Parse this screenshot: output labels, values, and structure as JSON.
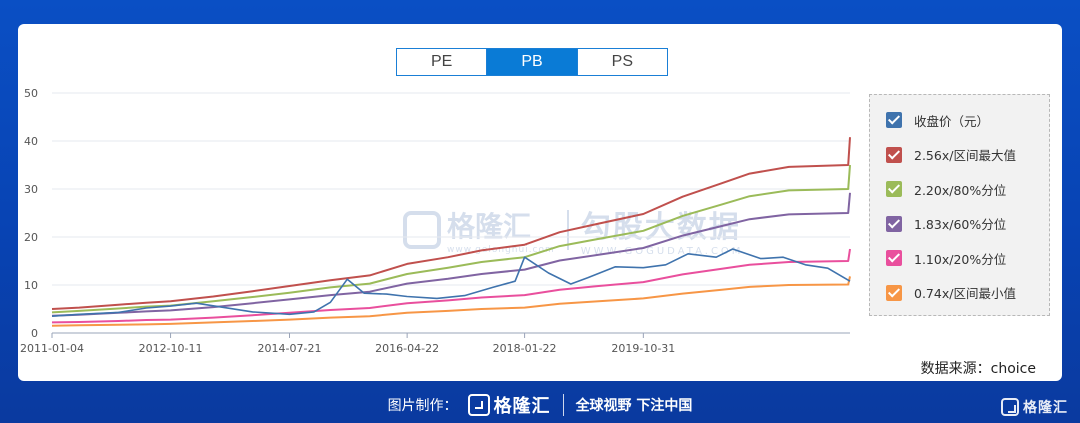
{
  "tabs": [
    {
      "label": "PE",
      "active": false
    },
    {
      "label": "PB",
      "active": true
    },
    {
      "label": "PS",
      "active": false
    }
  ],
  "watermark": {
    "brand1": "格隆汇",
    "brand1_sub": "www.gelonghui.com",
    "brand2": "勾股大数据",
    "brand2_sub": "WWW.GOGUDATA.COM"
  },
  "source": "数据来源：choice",
  "footer": {
    "label": "图片制作：",
    "logo_text": "格隆汇",
    "slogan": "全球视野 下注中国",
    "corner_logo": "格隆汇"
  },
  "chart_data": {
    "type": "line",
    "ylim": [
      0,
      50
    ],
    "yticks": [
      0,
      10,
      20,
      30,
      40,
      50
    ],
    "xlim": [
      "2011-01-04",
      "2022-11-30"
    ],
    "xticks": [
      "2011-01-04",
      "2012-10-11",
      "2014-07-21",
      "2016-04-22",
      "2018-01-22",
      "2019-10-31"
    ],
    "grid": true,
    "legend_position": "right",
    "series": [
      {
        "name": "收盘价（元）",
        "color": "#3f73ad",
        "points": [
          [
            "2011-01-04",
            3.5
          ],
          [
            "2011-06-01",
            3.9
          ],
          [
            "2012-01-01",
            4.3
          ],
          [
            "2012-06-01",
            5.2
          ],
          [
            "2012-10-11",
            5.6
          ],
          [
            "2013-03-01",
            6.2
          ],
          [
            "2013-08-01",
            5.3
          ],
          [
            "2014-01-01",
            4.4
          ],
          [
            "2014-07-21",
            3.9
          ],
          [
            "2014-12-01",
            4.4
          ],
          [
            "2015-03-01",
            6.4
          ],
          [
            "2015-06-01",
            11.2
          ],
          [
            "2015-09-01",
            8.3
          ],
          [
            "2016-01-01",
            8.1
          ],
          [
            "2016-04-22",
            7.6
          ],
          [
            "2016-10-01",
            7.2
          ],
          [
            "2017-03-01",
            7.8
          ],
          [
            "2017-08-01",
            9.5
          ],
          [
            "2017-12-01",
            10.8
          ],
          [
            "2018-01-22",
            15.8
          ],
          [
            "2018-06-01",
            12.5
          ],
          [
            "2018-10-01",
            10.2
          ],
          [
            "2019-01-01",
            11.5
          ],
          [
            "2019-06-01",
            13.8
          ],
          [
            "2019-10-31",
            13.6
          ],
          [
            "2020-03-01",
            14.2
          ],
          [
            "2020-07-01",
            16.5
          ],
          [
            "2020-12-01",
            15.8
          ],
          [
            "2021-03-01",
            17.5
          ],
          [
            "2021-08-01",
            15.5
          ],
          [
            "2021-12-01",
            15.8
          ],
          [
            "2022-04-01",
            14.2
          ],
          [
            "2022-08-01",
            13.5
          ],
          [
            "2022-11-30",
            10.8
          ]
        ]
      },
      {
        "name": "2.56x/区间最大值",
        "color": "#c0504d",
        "points": [
          [
            "2011-01-04",
            5.0
          ],
          [
            "2011-06-01",
            5.3
          ],
          [
            "2012-01-01",
            5.9
          ],
          [
            "2012-06-01",
            6.3
          ],
          [
            "2012-10-11",
            6.6
          ],
          [
            "2013-06-01",
            7.6
          ],
          [
            "2014-01-01",
            8.7
          ],
          [
            "2014-07-21",
            9.8
          ],
          [
            "2015-03-01",
            11.0
          ],
          [
            "2015-10-01",
            12.0
          ],
          [
            "2016-04-22",
            14.4
          ],
          [
            "2016-12-01",
            15.8
          ],
          [
            "2017-06-01",
            17.2
          ],
          [
            "2018-01-22",
            18.4
          ],
          [
            "2018-08-01",
            21.0
          ],
          [
            "2019-03-01",
            22.8
          ],
          [
            "2019-10-31",
            24.8
          ],
          [
            "2020-06-01",
            28.4
          ],
          [
            "2021-01-01",
            31.2
          ],
          [
            "2021-06-01",
            33.2
          ],
          [
            "2022-01-01",
            34.6
          ],
          [
            "2022-11-20",
            35.0
          ],
          [
            "2022-11-30",
            40.8
          ]
        ]
      },
      {
        "name": "2.20x/80%分位",
        "color": "#9bbb59",
        "points": [
          [
            "2011-01-04",
            4.3
          ],
          [
            "2011-06-01",
            4.6
          ],
          [
            "2012-01-01",
            5.1
          ],
          [
            "2012-06-01",
            5.5
          ],
          [
            "2012-10-11",
            5.7
          ],
          [
            "2013-06-01",
            6.6
          ],
          [
            "2014-01-01",
            7.5
          ],
          [
            "2014-07-21",
            8.4
          ],
          [
            "2015-03-01",
            9.5
          ],
          [
            "2015-10-01",
            10.3
          ],
          [
            "2016-04-22",
            12.3
          ],
          [
            "2016-12-01",
            13.6
          ],
          [
            "2017-06-01",
            14.8
          ],
          [
            "2018-01-22",
            15.8
          ],
          [
            "2018-08-01",
            18.1
          ],
          [
            "2019-03-01",
            19.6
          ],
          [
            "2019-10-31",
            21.3
          ],
          [
            "2020-06-01",
            24.4
          ],
          [
            "2021-01-01",
            26.8
          ],
          [
            "2021-06-01",
            28.5
          ],
          [
            "2022-01-01",
            29.7
          ],
          [
            "2022-11-20",
            30.0
          ],
          [
            "2022-11-30",
            35.0
          ]
        ]
      },
      {
        "name": "1.83x/60%分位",
        "color": "#8064a2",
        "points": [
          [
            "2011-01-04",
            3.6
          ],
          [
            "2011-06-01",
            3.8
          ],
          [
            "2012-01-01",
            4.2
          ],
          [
            "2012-06-01",
            4.5
          ],
          [
            "2012-10-11",
            4.7
          ],
          [
            "2013-06-01",
            5.4
          ],
          [
            "2014-01-01",
            6.2
          ],
          [
            "2014-07-21",
            7.0
          ],
          [
            "2015-03-01",
            7.9
          ],
          [
            "2015-10-01",
            8.6
          ],
          [
            "2016-04-22",
            10.3
          ],
          [
            "2016-12-01",
            11.3
          ],
          [
            "2017-06-01",
            12.3
          ],
          [
            "2018-01-22",
            13.2
          ],
          [
            "2018-08-01",
            15.1
          ],
          [
            "2019-03-01",
            16.3
          ],
          [
            "2019-10-31",
            17.7
          ],
          [
            "2020-06-01",
            20.3
          ],
          [
            "2021-01-01",
            22.3
          ],
          [
            "2021-06-01",
            23.7
          ],
          [
            "2022-01-01",
            24.7
          ],
          [
            "2022-11-20",
            25.0
          ],
          [
            "2022-11-30",
            29.2
          ]
        ]
      },
      {
        "name": "1.10x/20%分位",
        "color": "#e94f9d",
        "points": [
          [
            "2011-01-04",
            2.2
          ],
          [
            "2011-06-01",
            2.3
          ],
          [
            "2012-01-01",
            2.5
          ],
          [
            "2012-06-01",
            2.7
          ],
          [
            "2012-10-11",
            2.8
          ],
          [
            "2013-06-01",
            3.2
          ],
          [
            "2014-01-01",
            3.7
          ],
          [
            "2014-07-21",
            4.2
          ],
          [
            "2015-03-01",
            4.8
          ],
          [
            "2015-10-01",
            5.2
          ],
          [
            "2016-04-22",
            6.2
          ],
          [
            "2016-12-01",
            6.8
          ],
          [
            "2017-06-01",
            7.4
          ],
          [
            "2018-01-22",
            7.9
          ],
          [
            "2018-08-01",
            9.0
          ],
          [
            "2019-03-01",
            9.8
          ],
          [
            "2019-10-31",
            10.6
          ],
          [
            "2020-06-01",
            12.2
          ],
          [
            "2021-01-01",
            13.4
          ],
          [
            "2021-06-01",
            14.2
          ],
          [
            "2022-01-01",
            14.8
          ],
          [
            "2022-11-20",
            15.0
          ],
          [
            "2022-11-30",
            17.5
          ]
        ]
      },
      {
        "name": "0.74x/区间最小值",
        "color": "#f79646",
        "points": [
          [
            "2011-01-04",
            1.5
          ],
          [
            "2011-06-01",
            1.6
          ],
          [
            "2012-01-01",
            1.7
          ],
          [
            "2012-06-01",
            1.8
          ],
          [
            "2012-10-11",
            1.9
          ],
          [
            "2013-06-01",
            2.2
          ],
          [
            "2014-01-01",
            2.5
          ],
          [
            "2014-07-21",
            2.8
          ],
          [
            "2015-03-01",
            3.2
          ],
          [
            "2015-10-01",
            3.5
          ],
          [
            "2016-04-22",
            4.2
          ],
          [
            "2016-12-01",
            4.6
          ],
          [
            "2017-06-01",
            5.0
          ],
          [
            "2018-01-22",
            5.3
          ],
          [
            "2018-08-01",
            6.1
          ],
          [
            "2019-03-01",
            6.6
          ],
          [
            "2019-10-31",
            7.2
          ],
          [
            "2020-06-01",
            8.2
          ],
          [
            "2021-01-01",
            9.0
          ],
          [
            "2021-06-01",
            9.6
          ],
          [
            "2022-01-01",
            10.0
          ],
          [
            "2022-11-20",
            10.1
          ],
          [
            "2022-11-30",
            11.8
          ]
        ]
      }
    ]
  }
}
